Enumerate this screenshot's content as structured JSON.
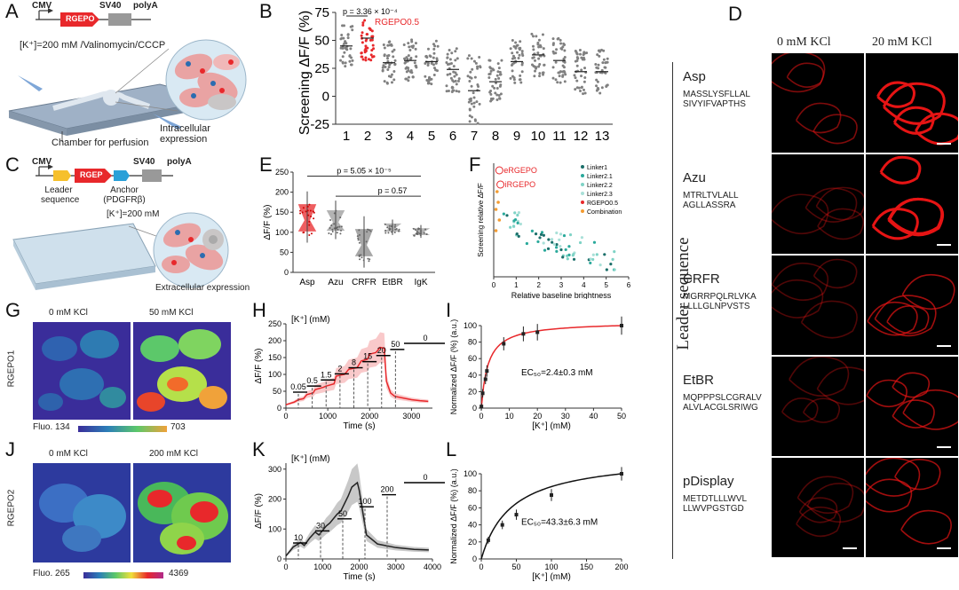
{
  "panel_letters": [
    "A",
    "B",
    "C",
    "D",
    "E",
    "F",
    "G",
    "H",
    "I",
    "J",
    "K",
    "L"
  ],
  "A": {
    "cmv": "CMV",
    "gene": "RGEPO",
    "sv40": "SV40",
    "polya": "polyA",
    "condition": "[K⁺]=200 mM /Valinomycin/CCCP",
    "chamber_label": "Chamber for perfusion",
    "expression_label": "Intracellular expression"
  },
  "C": {
    "cmv": "CMV",
    "gene": "RGEP",
    "sv40": "SV40",
    "polya": "polyA",
    "leader": "Leader\nsequence",
    "leader_l1": "Leader",
    "leader_l2": "sequence",
    "anchor_l1": "Anchor",
    "anchor_l2": "(PDGFRβ)",
    "condition": "[K⁺]=200 mM",
    "expression_label": "Extracellular expression"
  },
  "D": {
    "col1": "0 mM KCl",
    "col2": "20 mM KCl",
    "side_label": "Leader sequence",
    "rows": [
      {
        "name": "Asp",
        "seq1": "MASSLYSFLLAL",
        "seq2": "SIVYIFVAPTHS"
      },
      {
        "name": "Azu",
        "seq1": "MTRLTVLALL",
        "seq2": "AGLLASSRA"
      },
      {
        "name": "CRFR",
        "seq1": "MGRRPQLRLVKA",
        "seq2": "LLLLGLNPVSTS"
      },
      {
        "name": "EtBR",
        "seq1": "MQPPPSLCGRALV",
        "seq2": "ALVLACGLSRIWG"
      },
      {
        "name": "pDisplay",
        "seq1": "METDTLLLWVL",
        "seq2": "LLWVPGSTGD"
      }
    ]
  },
  "G": {
    "col1": "0 mM KCl",
    "col2": "50 mM KCl",
    "side": "RGEPO1",
    "fluo_label": "Fluo. 134",
    "fluo_max": "703"
  },
  "J": {
    "col1": "0 mM KCl",
    "col2": "200 mM KCl",
    "side": "RGEPO2",
    "fluo_label": "Fluo. 265",
    "fluo_max": "4369"
  },
  "colors": {
    "red": "#e8282b",
    "gray": "#808080",
    "teal_dark": "#1b6f6a",
    "teal": "#2aa99b",
    "teal_light": "#7fd3c6",
    "orange": "#f39c32"
  },
  "chart_data": [
    {
      "id": "B",
      "type": "scatter",
      "ylabel": "Screening ΔF/F (%)",
      "categories": [
        "1",
        "2",
        "3",
        "4",
        "5",
        "6",
        "7",
        "8",
        "9",
        "10",
        "11",
        "12",
        "13"
      ],
      "ylim": [
        -25,
        75
      ],
      "yticks": [
        "-25",
        "0",
        "25",
        "50",
        "75"
      ],
      "medians": [
        45,
        52,
        30,
        32,
        31,
        24,
        5,
        13,
        31,
        37,
        32,
        22,
        22
      ],
      "annotation": "p = 3.36 × 10⁻⁴",
      "highlight_label": "RGEPO0.5",
      "highlight_index": 2
    },
    {
      "id": "E",
      "type": "box",
      "ylabel": "ΔF/F (%)",
      "categories": [
        "Asp",
        "Azu",
        "CRFR",
        "EtBR",
        "IgK"
      ],
      "ylim": [
        0,
        250
      ],
      "yticks": [
        "0",
        "50",
        "100",
        "150",
        "200",
        "250"
      ],
      "medians": [
        130,
        125,
        68,
        110,
        100
      ],
      "annotations": [
        "p = 5.05 × 10⁻⁵",
        "p = 0.57"
      ]
    },
    {
      "id": "F",
      "type": "scatter",
      "xlabel": "Relative baseline brightness",
      "ylabel": "Screening relative ΔF/F",
      "xticks": [
        "0",
        "1",
        "2",
        "3",
        "4",
        "5",
        "6"
      ],
      "xlim": [
        0,
        6
      ],
      "ylim": [
        0,
        3.2
      ],
      "legend": [
        "Linker1",
        "Linker2.1",
        "Linker2.2",
        "Linker2.3",
        "RGEPO0.5",
        "Combination"
      ],
      "labels": [
        "eRGEPO",
        "iRGEPO"
      ]
    },
    {
      "id": "H",
      "type": "line",
      "xlabel": "Time (s)",
      "ylabel": "ΔF/F (%)",
      "header": "[K⁺] (mM)",
      "xticks": [
        "0",
        "1000",
        "2000",
        "3000"
      ],
      "yticks": [
        "0",
        "50",
        "100",
        "150",
        "200",
        "250"
      ],
      "xlim": [
        0,
        3500
      ],
      "ylim": [
        0,
        250
      ],
      "steps": [
        "0.05",
        "0.5",
        "1.5",
        "2",
        "8",
        "15",
        "20",
        "50",
        "0"
      ],
      "trace_t": [
        0,
        200,
        300,
        420,
        500,
        650,
        700,
        900,
        950,
        1150,
        1200,
        1400,
        1500,
        1700,
        1800,
        1950,
        2000,
        2150,
        2250,
        2350,
        2400,
        2500,
        2600,
        2800,
        3000,
        3200,
        3400
      ],
      "trace_v": [
        10,
        18,
        25,
        28,
        40,
        45,
        55,
        62,
        65,
        72,
        95,
        100,
        115,
        120,
        140,
        145,
        160,
        165,
        180,
        178,
        80,
        45,
        35,
        30,
        25,
        22,
        20
      ]
    },
    {
      "id": "I",
      "type": "line",
      "xlabel": "[K⁺] (mM)",
      "ylabel": "Normalized ΔF/F (%) (a.u.)",
      "xticks": [
        "0",
        "10",
        "20",
        "30",
        "40",
        "50"
      ],
      "yticks": [
        "0",
        "20",
        "40",
        "60",
        "80",
        "100"
      ],
      "xlim": [
        0,
        50
      ],
      "ylim": [
        0,
        100
      ],
      "x": [
        0.05,
        0.5,
        1.5,
        2,
        8,
        15,
        20,
        50
      ],
      "y": [
        2,
        18,
        35,
        45,
        78,
        90,
        92,
        100
      ],
      "ec50_text": "EC₅₀=2.4±0.3 mM"
    },
    {
      "id": "K",
      "type": "line",
      "xlabel": "Time (s)",
      "ylabel": "ΔF/F (%)",
      "header": "[K⁺] (mM)",
      "xticks": [
        "0",
        "1000",
        "2000",
        "3000",
        "4000"
      ],
      "yticks": [
        "0",
        "100",
        "200",
        "300"
      ],
      "xlim": [
        0,
        4000
      ],
      "ylim": [
        0,
        320
      ],
      "steps": [
        "10",
        "30",
        "50",
        "100",
        "200",
        "0"
      ],
      "trace_t": [
        0,
        200,
        400,
        500,
        650,
        800,
        900,
        1100,
        1200,
        1400,
        1500,
        1700,
        1800,
        1950,
        2000,
        2200,
        2500,
        3000,
        3500,
        3900
      ],
      "trace_v": [
        10,
        40,
        55,
        45,
        70,
        90,
        80,
        110,
        120,
        150,
        160,
        210,
        240,
        255,
        230,
        80,
        50,
        38,
        32,
        30
      ]
    },
    {
      "id": "L",
      "type": "line",
      "xlabel": "[K⁺] (mM)",
      "ylabel": "Normalized ΔF/F (%) (a.u.)",
      "xticks": [
        "0",
        "50",
        "100",
        "150",
        "200"
      ],
      "yticks": [
        "0",
        "20",
        "40",
        "60",
        "80",
        "100"
      ],
      "xlim": [
        0,
        200
      ],
      "ylim": [
        0,
        100
      ],
      "x": [
        10,
        30,
        50,
        100,
        200
      ],
      "y": [
        22,
        40,
        52,
        75,
        100
      ],
      "ec50_text": "EC₅₀=43.3±6.3 mM"
    }
  ]
}
